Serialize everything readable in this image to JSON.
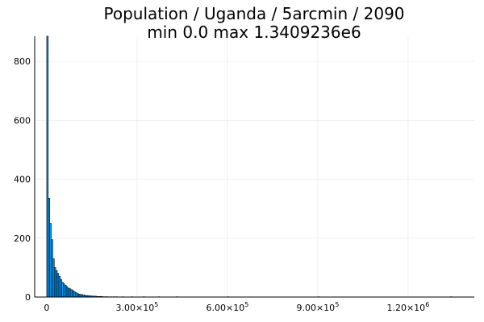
{
  "chart_data": {
    "type": "bar",
    "title": "Population / Uganda / 5arcmin / 2090",
    "subtitle": "min 0.0  max 1.3409236e6",
    "xlabel": "",
    "ylabel": "",
    "xlim": [
      -40000,
      1420000
    ],
    "ylim": [
      0,
      885
    ],
    "grid": true,
    "legend": false,
    "bar_color": "#009AFA",
    "bin_width": 5000,
    "x_ticks": [
      {
        "value": 0,
        "mantissa": "0",
        "exponent": ""
      },
      {
        "value": 300000,
        "mantissa": "3.00×10",
        "exponent": "5"
      },
      {
        "value": 600000,
        "mantissa": "6.00×10",
        "exponent": "5"
      },
      {
        "value": 900000,
        "mantissa": "9.00×10",
        "exponent": "5"
      },
      {
        "value": 1200000,
        "mantissa": "1.20×10",
        "exponent": "6"
      }
    ],
    "y_ticks": [
      {
        "value": 0,
        "label": "0"
      },
      {
        "value": 200,
        "label": "200"
      },
      {
        "value": 400,
        "label": "400"
      },
      {
        "value": 600,
        "label": "600"
      },
      {
        "value": 800,
        "label": "800"
      }
    ],
    "bins_start": [
      0,
      5000,
      10000,
      15000,
      20000,
      25000,
      30000,
      35000,
      40000,
      45000,
      50000,
      55000,
      60000,
      65000,
      70000,
      75000,
      80000,
      85000,
      90000,
      95000,
      100000,
      105000,
      110000,
      115000,
      120000,
      125000,
      130000,
      135000,
      140000,
      145000,
      150000,
      155000,
      160000,
      165000,
      170000,
      175000,
      180000,
      185000,
      190000,
      195000,
      200000,
      210000,
      220000,
      230000,
      250000,
      280000,
      320000,
      370000,
      430000,
      600000,
      900000,
      1340000
    ],
    "counts": [
      885,
      335,
      250,
      195,
      130,
      100,
      90,
      80,
      70,
      60,
      50,
      45,
      40,
      35,
      30,
      28,
      25,
      22,
      18,
      15,
      12,
      10,
      9,
      8,
      7,
      6,
      5,
      5,
      4,
      4,
      3,
      3,
      3,
      2,
      2,
      2,
      2,
      1,
      1,
      1,
      1,
      1,
      1,
      1,
      1,
      1,
      1,
      1,
      1,
      1,
      1,
      1
    ]
  }
}
